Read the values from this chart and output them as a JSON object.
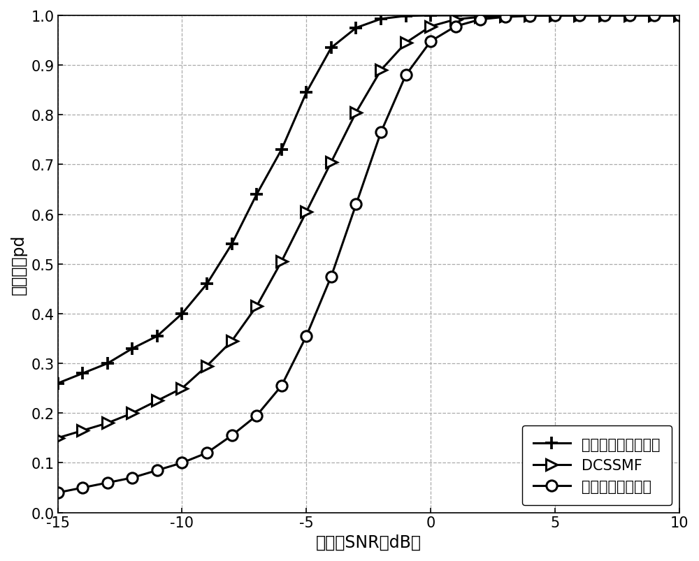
{
  "xlabel": "信噪比SNR（dB）",
  "ylabel": "检错概率pd",
  "xlim": [
    -15,
    10
  ],
  "ylim": [
    0,
    1.0
  ],
  "xticks": [
    -15,
    -10,
    -5,
    0,
    5,
    10
  ],
  "yticks": [
    0,
    0.1,
    0.2,
    0.3,
    0.4,
    0.5,
    0.6,
    0.7,
    0.8,
    0.9,
    1.0
  ],
  "grid_color": "#aaaaaa",
  "line_color": "#000000",
  "background_color": "#ffffff",
  "series": [
    {
      "label": "双门限协作改进算法",
      "marker": "plus",
      "x": [
        -15,
        -14,
        -13,
        -12,
        -11,
        -10,
        -9,
        -8,
        -7,
        -6,
        -5,
        -4,
        -3,
        -2,
        -1,
        0,
        1,
        2,
        3,
        4,
        5,
        6,
        7,
        8,
        9,
        10
      ],
      "y": [
        0.26,
        0.28,
        0.3,
        0.33,
        0.355,
        0.4,
        0.46,
        0.54,
        0.64,
        0.73,
        0.845,
        0.935,
        0.975,
        0.993,
        0.999,
        1.0,
        1.0,
        1.0,
        1.0,
        1.0,
        1.0,
        1.0,
        1.0,
        1.0,
        1.0,
        1.0
      ]
    },
    {
      "label": "DCSSMF",
      "marker": "triangle_right",
      "x": [
        -15,
        -14,
        -13,
        -12,
        -11,
        -10,
        -9,
        -8,
        -7,
        -6,
        -5,
        -4,
        -3,
        -2,
        -1,
        0,
        1,
        2,
        3,
        4,
        5,
        6,
        7,
        8,
        9,
        10
      ],
      "y": [
        0.15,
        0.165,
        0.18,
        0.2,
        0.225,
        0.25,
        0.295,
        0.345,
        0.415,
        0.505,
        0.605,
        0.705,
        0.805,
        0.89,
        0.945,
        0.978,
        0.992,
        0.997,
        0.999,
        1.0,
        1.0,
        1.0,
        1.0,
        1.0,
        1.0,
        1.0
      ]
    },
    {
      "label": "自适应双门限算法",
      "marker": "circle",
      "x": [
        -15,
        -14,
        -13,
        -12,
        -11,
        -10,
        -9,
        -8,
        -7,
        -6,
        -5,
        -4,
        -3,
        -2,
        -1,
        0,
        1,
        2,
        3,
        4,
        5,
        6,
        7,
        8,
        9,
        10
      ],
      "y": [
        0.04,
        0.05,
        0.06,
        0.07,
        0.085,
        0.1,
        0.12,
        0.155,
        0.195,
        0.255,
        0.355,
        0.475,
        0.62,
        0.765,
        0.88,
        0.948,
        0.978,
        0.992,
        0.997,
        0.999,
        1.0,
        1.0,
        1.0,
        1.0,
        1.0,
        1.0
      ]
    }
  ],
  "legend_loc": "lower right",
  "fontsize_label": 17,
  "fontsize_tick": 15,
  "fontsize_legend": 15,
  "linewidth": 2.2,
  "markersize_plus": 13,
  "markersize_tri": 11,
  "markersize_circle": 11,
  "markeredgewidth": 2.2
}
